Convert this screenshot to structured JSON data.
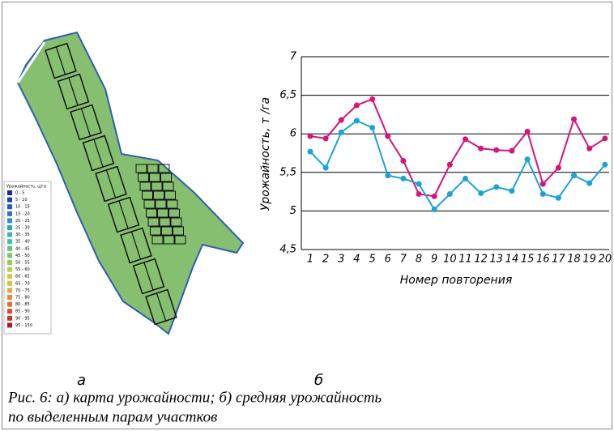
{
  "chart_data": {
    "type": "line",
    "y_label": "Урожайность, т /га",
    "x_label": "Номер повторения",
    "categories": [
      "1",
      "2",
      "3",
      "4",
      "5",
      "6",
      "7",
      "8",
      "9",
      "10",
      "11",
      "12",
      "13",
      "14",
      "15",
      "16",
      "17",
      "18",
      "19",
      "20"
    ],
    "series": [
      {
        "color": "#d4157a",
        "values": [
          5.97,
          5.94,
          6.18,
          6.37,
          6.45,
          5.97,
          5.65,
          5.22,
          5.19,
          5.6,
          5.93,
          5.81,
          5.79,
          5.78,
          6.03,
          5.35,
          5.56,
          6.19,
          5.81,
          5.94
        ]
      },
      {
        "color": "#1ba3d8",
        "values": [
          5.77,
          5.56,
          6.02,
          6.17,
          6.08,
          5.46,
          5.42,
          5.35,
          5.02,
          5.22,
          5.42,
          5.23,
          5.31,
          5.26,
          5.67,
          5.22,
          5.17,
          5.46,
          5.36,
          5.6
        ]
      }
    ],
    "ylim": [
      4.5,
      7
    ],
    "yticks": [
      {
        "value": 4.5,
        "label": "4,5"
      },
      5,
      {
        "value": 5.5,
        "label": "5,5"
      },
      6,
      {
        "value": 6.5,
        "label": "6,5"
      },
      7
    ],
    "grid": true
  },
  "figure": {
    "panel_a_label": "а",
    "panel_b_label": "б",
    "caption": [
      "Рис. 6: а) карта урожайности; б) средняя урожайность",
      "по выделенным парам участков"
    ],
    "map_legend": {
      "title": "Урожайность, ц/га",
      "items": [
        {
          "label": "0 - 5",
          "color": "#1a2a8c"
        },
        {
          "label": "5 - 10",
          "color": "#1f3fa8"
        },
        {
          "label": "10 - 15",
          "color": "#2458c0"
        },
        {
          "label": "15 - 20",
          "color": "#2a72cc"
        },
        {
          "label": "20 - 25",
          "color": "#2f8ccc"
        },
        {
          "label": "25 - 30",
          "color": "#35a3c4"
        },
        {
          "label": "30 - 35",
          "color": "#3bb5b0"
        },
        {
          "label": "35 - 40",
          "color": "#45bf98"
        },
        {
          "label": "40 - 45",
          "color": "#5cc47c"
        },
        {
          "label": "45 - 50",
          "color": "#78c868"
        },
        {
          "label": "50 - 55",
          "color": "#96cc5a"
        },
        {
          "label": "55 - 60",
          "color": "#b2cf50"
        },
        {
          "label": "60 - 65",
          "color": "#ccce48"
        },
        {
          "label": "65 - 70",
          "color": "#dcc040"
        },
        {
          "label": "70 - 75",
          "color": "#e2a83a"
        },
        {
          "label": "75 - 80",
          "color": "#e28c34"
        },
        {
          "label": "80 - 85",
          "color": "#dc6e30"
        },
        {
          "label": "85 - 90",
          "color": "#d4502c"
        },
        {
          "label": "90 - 95",
          "color": "#c83428"
        },
        {
          "label": "95 - 150",
          "color": "#b01c22"
        }
      ]
    }
  }
}
